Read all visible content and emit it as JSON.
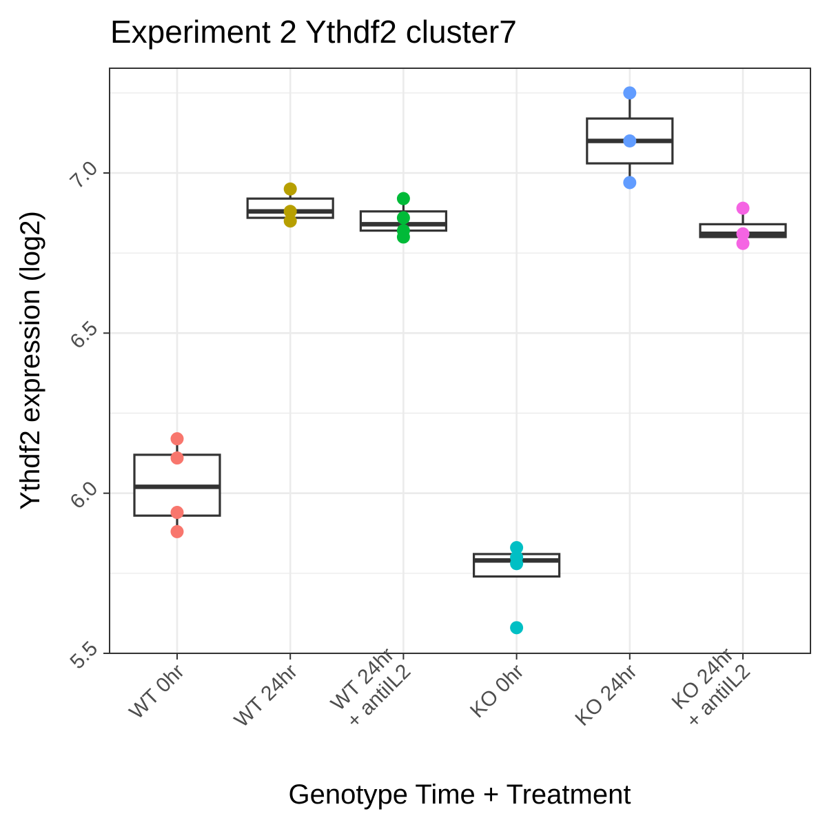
{
  "chart_data": {
    "type": "box",
    "title": "Experiment 2 Ythdf2 cluster7",
    "xlabel": "Genotype Time + Treatment",
    "ylabel": "Ythdf2 expression (log2)",
    "ylim": [
      5.5,
      7.27
    ],
    "yticks": [
      "5.5",
      "6.0",
      "6.5",
      "7.0"
    ],
    "grid": true,
    "legend": "none",
    "categories": [
      {
        "label_lines": [
          "WT 0hr"
        ],
        "color": "#F8766D",
        "box": {
          "q1": 5.93,
          "median": 6.02,
          "q3": 6.12,
          "whisker_low": 5.88,
          "whisker_high": 6.17
        },
        "points": [
          6.17,
          6.11,
          5.94,
          5.88
        ]
      },
      {
        "label_lines": [
          "WT 24hr"
        ],
        "color": "#B79F00",
        "box": {
          "q1": 6.86,
          "median": 6.88,
          "q3": 6.92,
          "whisker_low": 6.85,
          "whisker_high": 6.95
        },
        "points": [
          6.95,
          6.88,
          6.85
        ]
      },
      {
        "label_lines": [
          "WT 24hr",
          "+ antiIL2"
        ],
        "color": "#00BA38",
        "box": {
          "q1": 6.82,
          "median": 6.84,
          "q3": 6.88,
          "whisker_low": 6.8,
          "whisker_high": 6.92
        },
        "points": [
          6.92,
          6.86,
          6.82,
          6.8
        ]
      },
      {
        "label_lines": [
          "KO 0hr"
        ],
        "color": "#00BFC4",
        "box": {
          "q1": 5.74,
          "median": 5.79,
          "q3": 5.81,
          "whisker_low": 5.74,
          "whisker_high": 5.83
        },
        "points": [
          5.83,
          5.8,
          5.78,
          5.58
        ]
      },
      {
        "label_lines": [
          "KO 24hr"
        ],
        "color": "#619CFF",
        "box": {
          "q1": 7.03,
          "median": 7.1,
          "q3": 7.17,
          "whisker_low": 6.97,
          "whisker_high": 7.25
        },
        "points": [
          7.25,
          7.1,
          6.97
        ]
      },
      {
        "label_lines": [
          "KO 24hr",
          "+ antiIL2"
        ],
        "color": "#F564E3",
        "box": {
          "q1": 6.8,
          "median": 6.81,
          "q3": 6.84,
          "whisker_low": 6.8,
          "whisker_high": 6.89
        },
        "points": [
          6.89,
          6.81,
          6.78
        ]
      }
    ]
  }
}
